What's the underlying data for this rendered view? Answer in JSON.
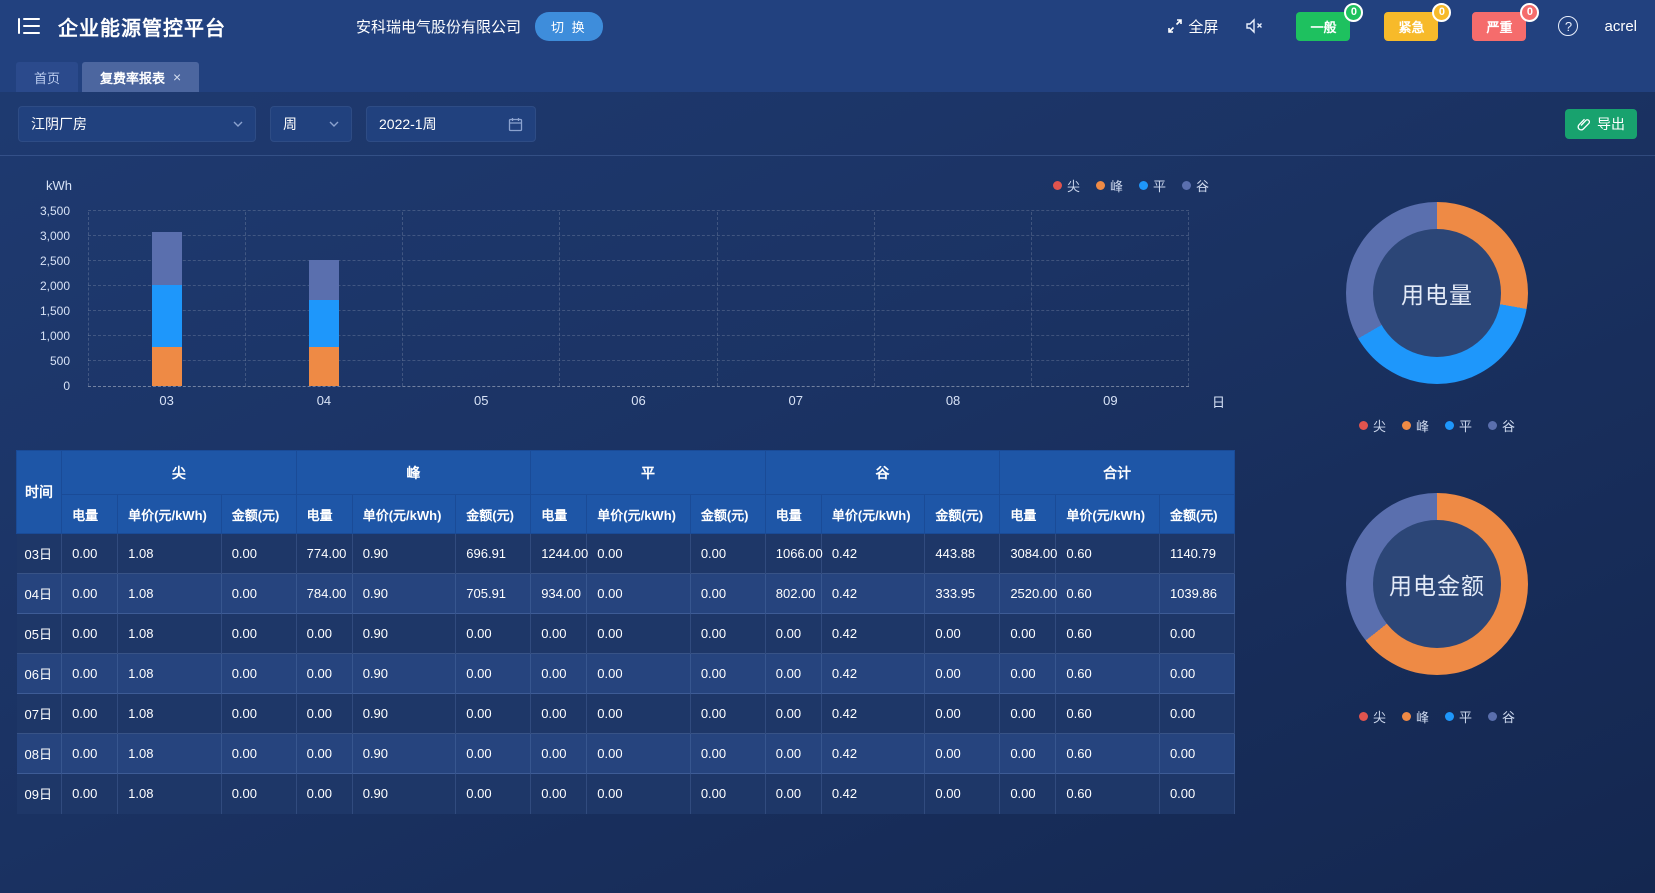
{
  "app": {
    "title": "企业能源管控平台"
  },
  "header": {
    "company": "安科瑞电气股份有限公司",
    "switch_label": "切 换",
    "fullscreen_label": "全屏",
    "alarms": [
      {
        "label": "一般",
        "count": "0",
        "color": "#1ec15f"
      },
      {
        "label": "紧急",
        "count": "0",
        "color": "#f7ba2a"
      },
      {
        "label": "严重",
        "count": "0",
        "color": "#f56c6c"
      }
    ],
    "help": "?",
    "username": "acrel"
  },
  "tabs": [
    {
      "label": "首页",
      "active": false
    },
    {
      "label": "复费率报表",
      "active": true,
      "close": "×"
    }
  ],
  "filters": {
    "site": "江阴厂房",
    "period": "周",
    "date": "2022-1周",
    "export_label": "导出"
  },
  "categories_legend": [
    "尖",
    "峰",
    "平",
    "谷"
  ],
  "palette": {
    "尖": "#e0544e",
    "峰": "#ee8a45",
    "平": "#1e97fb",
    "谷": "#5a6fae"
  },
  "chart_data": [
    {
      "type": "bar",
      "stacked": true,
      "y_unit": "kWh",
      "x_unit": "日",
      "categories": [
        "03",
        "04",
        "05",
        "06",
        "07",
        "08",
        "09"
      ],
      "ylim": [
        0,
        3500
      ],
      "yticks": [
        "0",
        "500",
        "1,000",
        "1,500",
        "2,000",
        "2,500",
        "3,000",
        "3,500"
      ],
      "grid": "dashed",
      "legend_position": "top-right",
      "series": [
        {
          "name": "尖",
          "values": [
            0,
            0,
            0,
            0,
            0,
            0,
            0
          ]
        },
        {
          "name": "峰",
          "values": [
            774,
            784,
            0,
            0,
            0,
            0,
            0
          ]
        },
        {
          "name": "平",
          "values": [
            1244,
            934,
            0,
            0,
            0,
            0,
            0
          ]
        },
        {
          "name": "谷",
          "values": [
            1066,
            802,
            0,
            0,
            0,
            0,
            0
          ]
        }
      ]
    },
    {
      "type": "pie",
      "title": "用电量",
      "legend_position": "bottom",
      "slices": [
        {
          "name": "尖",
          "value": 0
        },
        {
          "name": "峰",
          "value": 1558
        },
        {
          "name": "平",
          "value": 2178
        },
        {
          "name": "谷",
          "value": 1868
        }
      ]
    },
    {
      "type": "pie",
      "title": "用电金额",
      "legend_position": "bottom",
      "slices": [
        {
          "name": "尖",
          "value": 0
        },
        {
          "name": "峰",
          "value": 1402.82
        },
        {
          "name": "平",
          "value": 0
        },
        {
          "name": "谷",
          "value": 777.83
        }
      ]
    }
  ],
  "table": {
    "time_header": "时间",
    "groups": [
      "尖",
      "峰",
      "平",
      "谷",
      "合计"
    ],
    "sub_headers": [
      "电量",
      "单价(元/kWh)",
      "金额(元)"
    ],
    "rows": [
      {
        "time": "03日",
        "cells": [
          "0.00",
          "1.08",
          "0.00",
          "774.00",
          "0.90",
          "696.91",
          "1244.00",
          "0.00",
          "0.00",
          "1066.00",
          "0.42",
          "443.88",
          "3084.00",
          "0.60",
          "1140.79"
        ]
      },
      {
        "time": "04日",
        "cells": [
          "0.00",
          "1.08",
          "0.00",
          "784.00",
          "0.90",
          "705.91",
          "934.00",
          "0.00",
          "0.00",
          "802.00",
          "0.42",
          "333.95",
          "2520.00",
          "0.60",
          "1039.86"
        ]
      },
      {
        "time": "05日",
        "cells": [
          "0.00",
          "1.08",
          "0.00",
          "0.00",
          "0.90",
          "0.00",
          "0.00",
          "0.00",
          "0.00",
          "0.00",
          "0.42",
          "0.00",
          "0.00",
          "0.60",
          "0.00"
        ]
      },
      {
        "time": "06日",
        "cells": [
          "0.00",
          "1.08",
          "0.00",
          "0.00",
          "0.90",
          "0.00",
          "0.00",
          "0.00",
          "0.00",
          "0.00",
          "0.42",
          "0.00",
          "0.00",
          "0.60",
          "0.00"
        ]
      },
      {
        "time": "07日",
        "cells": [
          "0.00",
          "1.08",
          "0.00",
          "0.00",
          "0.90",
          "0.00",
          "0.00",
          "0.00",
          "0.00",
          "0.00",
          "0.42",
          "0.00",
          "0.00",
          "0.60",
          "0.00"
        ]
      },
      {
        "time": "08日",
        "cells": [
          "0.00",
          "1.08",
          "0.00",
          "0.00",
          "0.90",
          "0.00",
          "0.00",
          "0.00",
          "0.00",
          "0.00",
          "0.42",
          "0.00",
          "0.00",
          "0.60",
          "0.00"
        ]
      },
      {
        "time": "09日",
        "cells": [
          "0.00",
          "1.08",
          "0.00",
          "0.00",
          "0.90",
          "0.00",
          "0.00",
          "0.00",
          "0.00",
          "0.00",
          "0.42",
          "0.00",
          "0.00",
          "0.60",
          "0.00"
        ]
      }
    ]
  }
}
